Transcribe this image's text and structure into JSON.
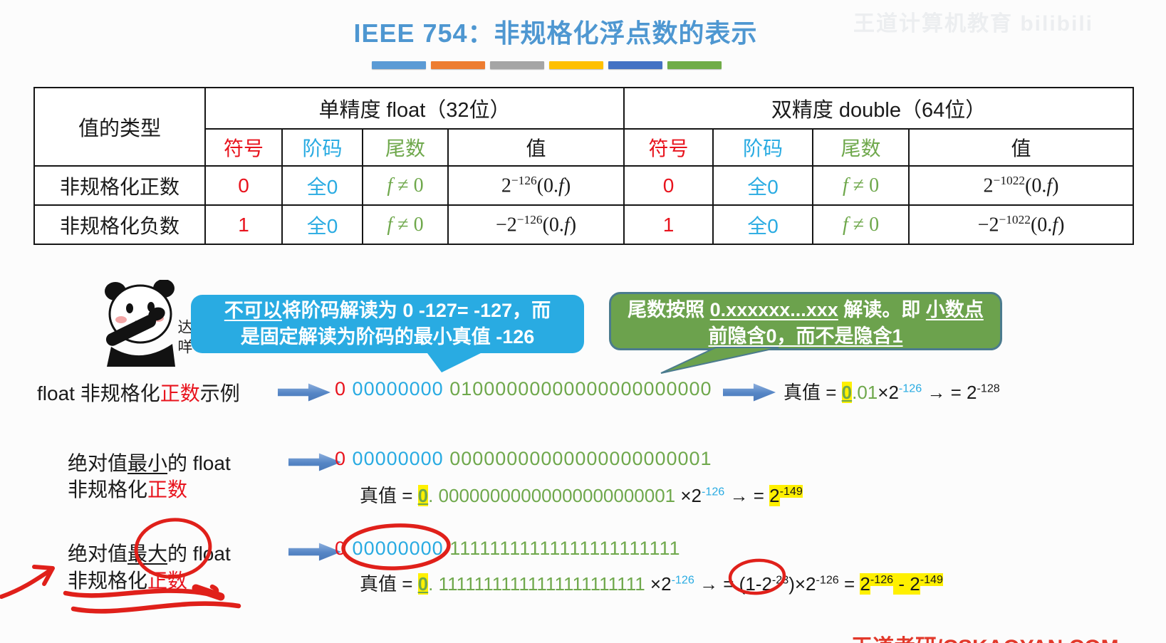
{
  "title": "IEEE 754：非规格化浮点数的表示",
  "accent_bars": [
    "#5B9BD5",
    "#ED7D31",
    "#A5A5A5",
    "#FFC000",
    "#4472C4",
    "#70AD47"
  ],
  "watermark_top": "王道计算机教育 bilibili",
  "watermark_bottom": "王道考研/CSKAOYAN.COM",
  "panda_label": "达咩",
  "table": {
    "type_header": "值的类型",
    "float_header": "单精度 float（32位）",
    "double_header": "双精度 double（64位）",
    "sub": [
      "符号",
      "阶码",
      "尾数",
      "值"
    ],
    "rows": [
      {
        "label": "非规格化正数",
        "f_sign": "0",
        "f_exp": "全0",
        "f_man": [
          {
            "t": "f",
            "c": "i"
          },
          {
            "t": " ≠ 0"
          }
        ],
        "f_val": [
          {
            "t": "2"
          },
          {
            "t": "−126",
            "c": "sup"
          },
          {
            "t": "(0."
          },
          {
            "t": "f",
            "c": "i"
          },
          {
            "t": ")"
          }
        ],
        "d_sign": "0",
        "d_exp": "全0",
        "d_man": [
          {
            "t": "f",
            "c": "i"
          },
          {
            "t": " ≠ 0"
          }
        ],
        "d_val": [
          {
            "t": "2"
          },
          {
            "t": "−1022",
            "c": "sup"
          },
          {
            "t": "(0."
          },
          {
            "t": "f",
            "c": "i"
          },
          {
            "t": ")"
          }
        ]
      },
      {
        "label": "非规格化负数",
        "f_sign": "1",
        "f_exp": "全0",
        "f_man": [
          {
            "t": "f",
            "c": "i"
          },
          {
            "t": " ≠ 0"
          }
        ],
        "f_val": [
          {
            "t": "−2"
          },
          {
            "t": "−126",
            "c": "sup"
          },
          {
            "t": "(0."
          },
          {
            "t": "f",
            "c": "i"
          },
          {
            "t": ")"
          }
        ],
        "d_sign": "1",
        "d_exp": "全0",
        "d_man": [
          {
            "t": "f",
            "c": "i"
          },
          {
            "t": " ≠ 0"
          }
        ],
        "d_val": [
          {
            "t": "−2"
          },
          {
            "t": "−1022",
            "c": "sup"
          },
          {
            "t": "(0."
          },
          {
            "t": "f",
            "c": "i"
          },
          {
            "t": ")"
          }
        ]
      }
    ]
  },
  "bubble_blue": {
    "line1": [
      {
        "t": "不可以",
        "c": "bu"
      },
      {
        "t": "将阶码解读为 0 -127= -127，而"
      }
    ],
    "line2": [
      {
        "t": "是固定解读为阶码的最小真值 -126"
      }
    ]
  },
  "bubble_green": {
    "line1": [
      {
        "t": "尾数按照 "
      },
      {
        "t": "0.xxxxxx...xxx",
        "c": "bu"
      },
      {
        "t": " 解读。即 "
      },
      {
        "t": "小数点",
        "c": "bu"
      }
    ],
    "line2": [
      {
        "t": "前隐含0，而不是隐含1",
        "c": "bu"
      }
    ]
  },
  "ex1": {
    "label": [
      {
        "t": "float 非规格化"
      },
      {
        "t": "正数",
        "c": "red"
      },
      {
        "t": "示例"
      }
    ],
    "binary": [
      {
        "t": "0",
        "c": "sign"
      },
      {
        "t": " "
      },
      {
        "t": "00000000",
        "c": "exp"
      },
      {
        "t": " "
      },
      {
        "t": "01000000000000000000000",
        "c": "man"
      }
    ],
    "value": [
      {
        "t": "真值 = "
      },
      {
        "t": "0",
        "c": "hl0"
      },
      {
        "t": ".01",
        "c": "man"
      },
      {
        "t": "×2"
      },
      {
        "t": "-126",
        "c": "sup exp"
      },
      {
        "t": "  →  = 2"
      },
      {
        "t": "-128",
        "c": "sup"
      }
    ]
  },
  "ex2": {
    "label1": [
      {
        "t": "绝对值"
      },
      {
        "t": "最小",
        "c": "u"
      },
      {
        "t": "的 float"
      }
    ],
    "label2": [
      {
        "t": "非规格化"
      },
      {
        "t": "正数",
        "c": "red"
      }
    ],
    "binary": [
      {
        "t": "0",
        "c": "sign"
      },
      {
        "t": " "
      },
      {
        "t": "00000000",
        "c": "exp"
      },
      {
        "t": " "
      },
      {
        "t": "00000000000000000000001",
        "c": "man"
      }
    ],
    "value": [
      {
        "t": "真值 = "
      },
      {
        "t": "0",
        "c": "hl0"
      },
      {
        "t": ". 00000000000000000000001",
        "c": "man"
      },
      {
        "t": " ×2"
      },
      {
        "t": "-126",
        "c": "sup exp"
      },
      {
        "t": " →  = "
      },
      {
        "t": "2",
        "c": "hl"
      },
      {
        "t": "-149",
        "c": "sup hl"
      }
    ]
  },
  "ex3": {
    "label1": [
      {
        "t": "绝对值"
      },
      {
        "t": "最大",
        "c": "u"
      },
      {
        "t": "的 float"
      }
    ],
    "label2": [
      {
        "t": "非规格化"
      },
      {
        "t": "正数",
        "c": "red"
      }
    ],
    "binary": [
      {
        "t": "0",
        "c": "sign"
      },
      {
        "t": " "
      },
      {
        "t": "00000000",
        "c": "exp"
      },
      {
        "t": " "
      },
      {
        "t": "11111111111111111111111",
        "c": "man"
      }
    ],
    "value": [
      {
        "t": "真值 = "
      },
      {
        "t": "0",
        "c": "hl0"
      },
      {
        "t": ". 11111111111111111111111",
        "c": "man"
      },
      {
        "t": " ×2"
      },
      {
        "t": "-126",
        "c": "sup exp"
      },
      {
        "t": " →  = (1-2"
      },
      {
        "t": "-23",
        "c": "sup"
      },
      {
        "t": ")×2"
      },
      {
        "t": "-126",
        "c": "sup"
      },
      {
        "t": " = "
      },
      {
        "t": "2",
        "c": "hl"
      },
      {
        "t": "-126",
        "c": "sup hl"
      },
      {
        "t": " - ",
        "c": "hl"
      },
      {
        "t": "2",
        "c": "hl"
      },
      {
        "t": "-149",
        "c": "sup hl"
      }
    ]
  }
}
